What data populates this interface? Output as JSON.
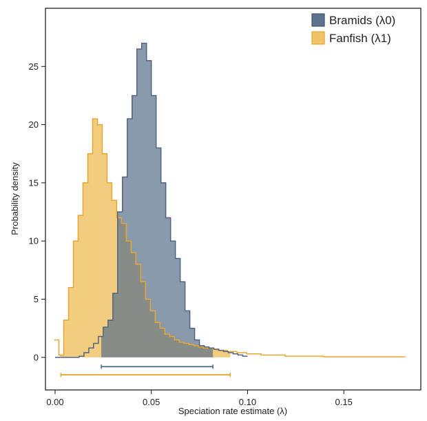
{
  "chart_data": {
    "type": "area",
    "xlabel": "Speciation rate estimate (λ)",
    "ylabel": "Probability density",
    "xlim": [
      -0.005,
      0.19
    ],
    "ylim": [
      -2.8,
      30
    ],
    "x_ticks": [
      "0.00",
      "0.05",
      "0.10",
      "0.15"
    ],
    "y_ticks": [
      "0",
      "5",
      "10",
      "15",
      "20",
      "25"
    ],
    "legend_position": "top-right",
    "bin_width": 0.0025,
    "series": [
      {
        "name": "Bramids (λ0)",
        "color": "#4f6580",
        "fill": "#5d738e",
        "bin_start": 0.0,
        "densities": [
          0,
          0,
          0,
          0,
          0,
          0.1,
          0.4,
          0.8,
          1.2,
          1.8,
          2.6,
          3.2,
          5.5,
          12.5,
          15.5,
          20.5,
          22.5,
          26.5,
          27.0,
          25.5,
          22.5,
          18.0,
          15.0,
          12.0,
          10.0,
          8.5,
          6.5,
          4.0,
          2.5,
          1.5,
          1.0,
          0.9,
          0.8,
          0.7,
          0.6,
          0.5,
          0.4,
          0.3,
          0.2,
          0.1
        ],
        "fill_range": [
          0.024,
          0.082
        ],
        "hpd_interval": [
          0.024,
          0.082
        ]
      },
      {
        "name": "Fanfish (λ1)",
        "color": "#e6a630",
        "fill": "#f0c369",
        "bin_start": -0.0005,
        "densities": [
          1.5,
          0.2,
          3.2,
          6.0,
          10.0,
          12.2,
          15.0,
          17.5,
          20.5,
          20.0,
          17.5,
          15.0,
          13.5,
          12.0,
          11.5,
          10.0,
          9.0,
          8.0,
          6.5,
          5.0,
          4.0,
          3.0,
          2.5,
          2.0,
          1.8,
          1.5,
          1.3,
          1.2,
          1.1,
          1.0,
          0.9,
          0.8,
          0.8,
          0.7,
          0.6,
          0.6,
          0.5,
          0.5,
          0.4,
          0.4,
          0.3,
          0.3,
          0.3,
          0.2,
          0.2,
          0.2,
          0.2,
          0.2,
          0.1,
          0.1,
          0.1,
          0.1,
          0.1,
          0.1,
          0.1,
          0.1,
          0.05,
          0.05,
          0.05,
          0.05,
          0.05,
          0.05,
          0.05,
          0.05,
          0.05,
          0.05,
          0.05,
          0.05,
          0.05,
          0.05,
          0.05,
          0.05,
          0.05
        ],
        "fill_range": [
          0.0025,
          0.091
        ],
        "hpd_interval": [
          0.003,
          0.091
        ]
      }
    ]
  },
  "legend": {
    "items": [
      {
        "label": "Bramids (λ0)",
        "fill": "#5d738e",
        "stroke": "#3f546f"
      },
      {
        "label": "Fanfish (λ1)",
        "fill": "#f0c369",
        "stroke": "#e6a630"
      }
    ]
  }
}
